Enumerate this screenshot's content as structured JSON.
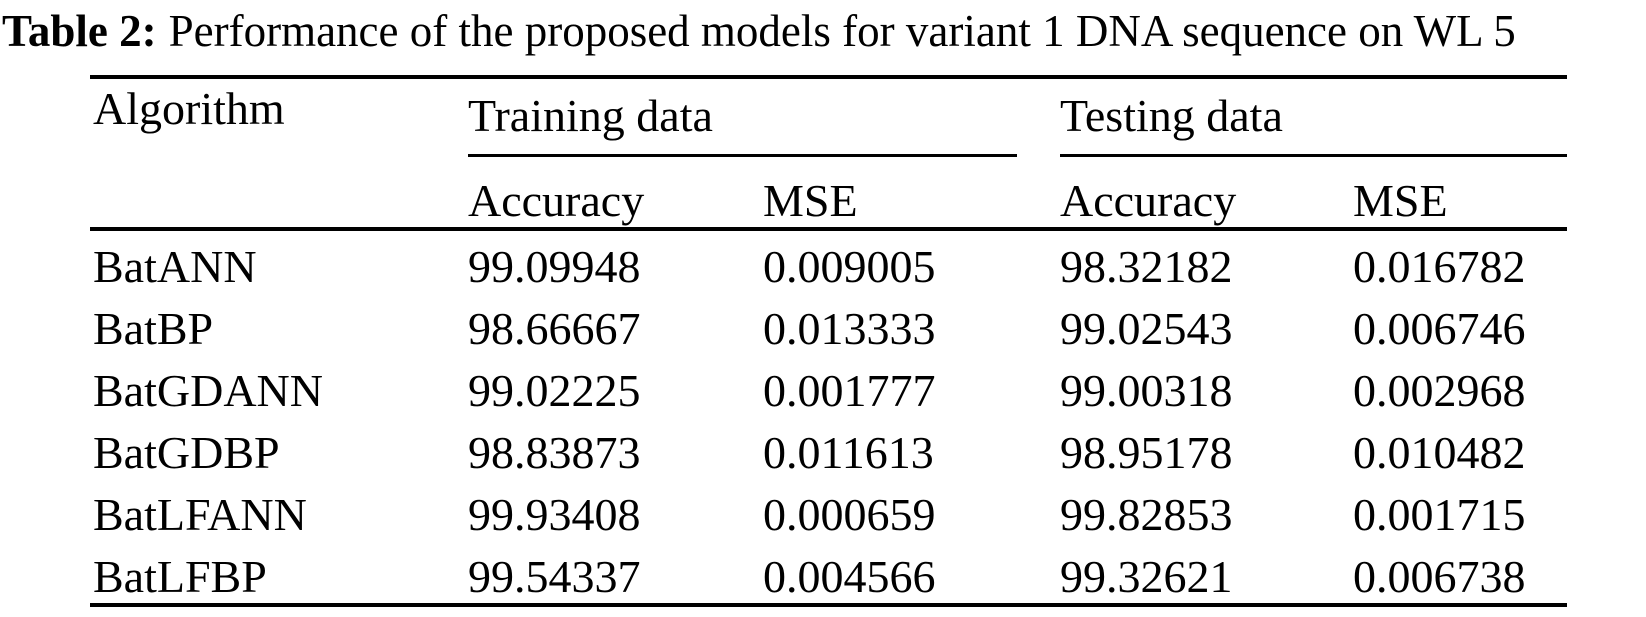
{
  "colors": {
    "text": "#000000",
    "background": "#ffffff",
    "rules": "#000000"
  },
  "caption": {
    "label": "Table 2:",
    "text": "Performance of the proposed models for variant 1 DNA sequence on WL 5"
  },
  "table": {
    "algorithm_header": "Algorithm",
    "groups": {
      "training": "Training data",
      "testing": "Testing data"
    },
    "sub_headers": [
      "Accuracy",
      "MSE",
      "Accuracy",
      "MSE"
    ],
    "rows": [
      {
        "algorithm": "BatANN",
        "train_accuracy": "99.09948",
        "train_mse": "0.009005",
        "test_accuracy": "98.32182",
        "test_mse": "0.016782"
      },
      {
        "algorithm": "BatBP",
        "train_accuracy": "98.66667",
        "train_mse": "0.013333",
        "test_accuracy": "99.02543",
        "test_mse": "0.006746"
      },
      {
        "algorithm": "BatGDANN",
        "train_accuracy": "99.02225",
        "train_mse": "0.001777",
        "test_accuracy": "99.00318",
        "test_mse": "0.002968"
      },
      {
        "algorithm": "BatGDBP",
        "train_accuracy": "98.83873",
        "train_mse": "0.011613",
        "test_accuracy": "98.95178",
        "test_mse": "0.010482"
      },
      {
        "algorithm": "BatLFANN",
        "train_accuracy": "99.93408",
        "train_mse": "0.000659",
        "test_accuracy": "99.82853",
        "test_mse": "0.001715"
      },
      {
        "algorithm": "BatLFBP",
        "train_accuracy": "99.54337",
        "train_mse": "0.004566",
        "test_accuracy": "99.32621",
        "test_mse": "0.006738"
      }
    ]
  }
}
